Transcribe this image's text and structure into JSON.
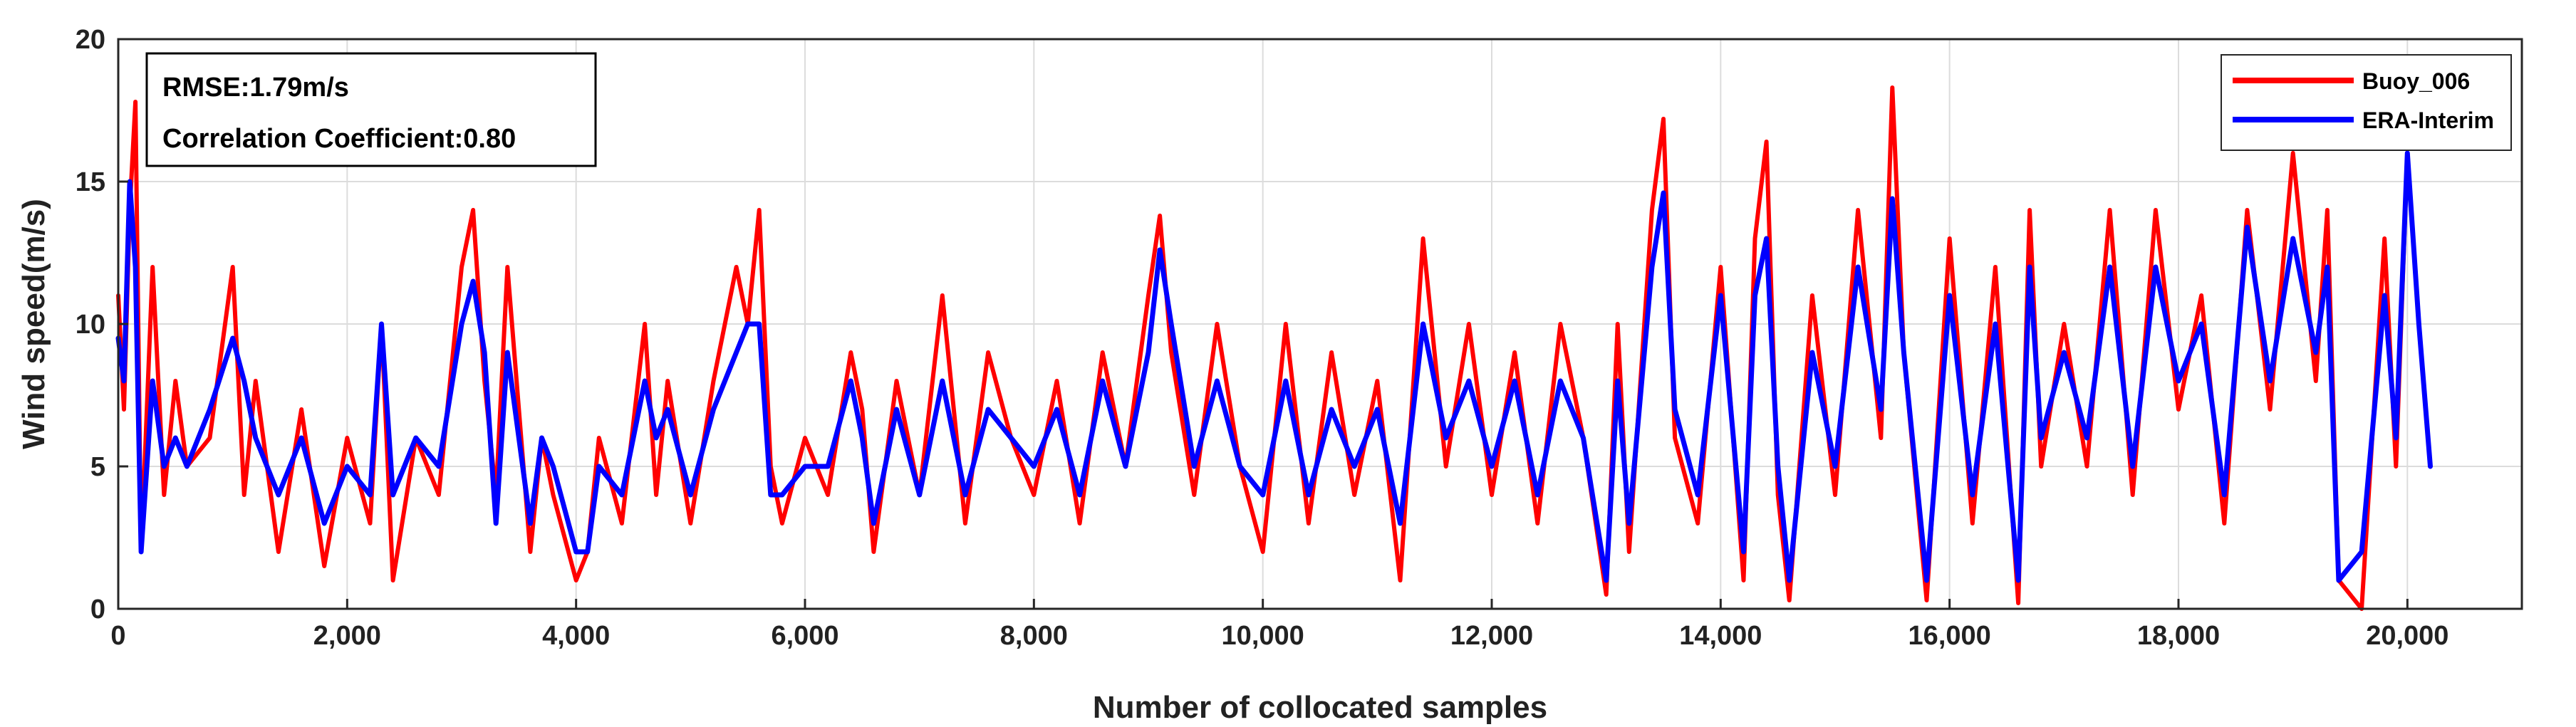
{
  "chart_data": {
    "type": "line",
    "title": "",
    "xlabel": "Number of collocated samples",
    "ylabel": "Wind speed(m/s)",
    "xlim": [
      0,
      21000
    ],
    "ylim": [
      0,
      20
    ],
    "x_ticks": [
      0,
      2000,
      4000,
      6000,
      8000,
      10000,
      12000,
      14000,
      16000,
      18000,
      20000
    ],
    "x_tick_labels": [
      "0",
      "2,000",
      "4,000",
      "6,000",
      "8,000",
      "10,000",
      "12,000",
      "14,000",
      "16,000",
      "18,000",
      "20,000"
    ],
    "y_ticks": [
      0,
      5,
      10,
      15,
      20
    ],
    "y_tick_labels": [
      "0",
      "5",
      "10",
      "15",
      "20"
    ],
    "grid": true,
    "legend_position": "top-right",
    "annotation_lines": [
      "RMSE:1.79m/s",
      "Correlation Coefficient:0.80"
    ],
    "series": [
      {
        "name": "Buoy_006",
        "color": "#ff0000",
        "x": [
          0,
          50,
          100,
          150,
          200,
          300,
          400,
          500,
          600,
          800,
          1000,
          1100,
          1200,
          1400,
          1600,
          1800,
          2000,
          2200,
          2300,
          2400,
          2600,
          2800,
          3000,
          3100,
          3200,
          3300,
          3400,
          3600,
          3700,
          3800,
          4000,
          4100,
          4200,
          4400,
          4600,
          4700,
          4800,
          5000,
          5200,
          5400,
          5500,
          5600,
          5700,
          5800,
          6000,
          6200,
          6400,
          6500,
          6600,
          6800,
          7000,
          7200,
          7400,
          7600,
          7800,
          8000,
          8200,
          8400,
          8600,
          8800,
          9000,
          9100,
          9200,
          9400,
          9600,
          9800,
          10000,
          10200,
          10400,
          10600,
          10800,
          11000,
          11200,
          11400,
          11600,
          11800,
          12000,
          12200,
          12400,
          12600,
          12800,
          13000,
          13100,
          13200,
          13400,
          13500,
          13600,
          13800,
          14000,
          14200,
          14300,
          14400,
          14500,
          14600,
          14800,
          15000,
          15200,
          15400,
          15500,
          15600,
          15800,
          16000,
          16200,
          16400,
          16600,
          16700,
          16800,
          17000,
          17200,
          17400,
          17600,
          17800,
          18000,
          18200,
          18400,
          18600,
          18800,
          19000,
          19200,
          19300,
          19400,
          19600,
          19800,
          19900,
          20000,
          20100,
          20200
        ],
        "values": [
          11,
          7,
          14,
          17.8,
          2,
          12,
          4,
          8,
          5,
          6,
          12,
          4,
          8,
          2,
          7,
          1.5,
          6,
          3,
          10,
          1,
          6,
          4,
          12,
          14,
          8,
          4,
          12,
          2,
          6,
          4,
          1,
          2,
          6,
          3,
          10,
          4,
          8,
          3,
          8,
          12,
          10,
          14,
          5,
          3,
          6,
          4,
          9,
          7,
          2,
          8,
          4,
          11,
          3,
          9,
          6,
          4,
          8,
          3,
          9,
          5,
          11,
          13.8,
          9,
          4,
          10,
          5,
          2,
          10,
          3,
          9,
          4,
          8,
          1,
          13,
          5,
          10,
          4,
          9,
          3,
          10,
          6,
          0.5,
          10,
          2,
          14,
          17.2,
          6,
          3,
          12,
          1,
          13,
          16.4,
          4,
          0.3,
          11,
          4,
          14,
          6,
          18.3,
          9,
          0.3,
          13,
          3,
          12,
          0.2,
          14,
          5,
          10,
          5,
          14,
          4,
          14,
          7,
          11,
          3,
          14,
          7,
          16,
          8,
          14,
          1,
          0,
          13,
          5,
          16,
          10,
          5
        ]
      },
      {
        "name": "ERA-Interim",
        "color": "#0000ff",
        "x": [
          0,
          50,
          100,
          150,
          200,
          300,
          400,
          500,
          600,
          800,
          1000,
          1100,
          1200,
          1400,
          1600,
          1800,
          2000,
          2200,
          2300,
          2400,
          2600,
          2800,
          3000,
          3100,
          3200,
          3300,
          3400,
          3600,
          3700,
          3800,
          4000,
          4100,
          4200,
          4400,
          4600,
          4700,
          4800,
          5000,
          5200,
          5400,
          5500,
          5600,
          5700,
          5800,
          6000,
          6200,
          6400,
          6500,
          6600,
          6800,
          7000,
          7200,
          7400,
          7600,
          7800,
          8000,
          8200,
          8400,
          8600,
          8800,
          9000,
          9100,
          9200,
          9400,
          9600,
          9800,
          10000,
          10200,
          10400,
          10600,
          10800,
          11000,
          11200,
          11400,
          11600,
          11800,
          12000,
          12200,
          12400,
          12600,
          12800,
          13000,
          13100,
          13200,
          13400,
          13500,
          13600,
          13800,
          14000,
          14200,
          14300,
          14400,
          14500,
          14600,
          14800,
          15000,
          15200,
          15400,
          15500,
          15600,
          15800,
          16000,
          16200,
          16400,
          16600,
          16700,
          16800,
          17000,
          17200,
          17400,
          17600,
          17800,
          18000,
          18200,
          18400,
          18600,
          18800,
          19000,
          19200,
          19300,
          19400,
          19600,
          19800,
          19900,
          20000,
          20100,
          20200
        ],
        "values": [
          9.5,
          8,
          15,
          12,
          2,
          8,
          5,
          6,
          5,
          7,
          9.5,
          8,
          6,
          4,
          6,
          3,
          5,
          4,
          10,
          4,
          6,
          5,
          10,
          11.5,
          9,
          3,
          9,
          3,
          6,
          5,
          2,
          2,
          5,
          4,
          8,
          6,
          7,
          4,
          7,
          9,
          10,
          10,
          4,
          4,
          5,
          5,
          8,
          6,
          3,
          7,
          4,
          8,
          4,
          7,
          6,
          5,
          7,
          4,
          8,
          5,
          9,
          12.6,
          10,
          5,
          8,
          5,
          4,
          8,
          4,
          7,
          5,
          7,
          3,
          10,
          6,
          8,
          5,
          8,
          4,
          8,
          6,
          1,
          8,
          3,
          12,
          14.6,
          7,
          4,
          11,
          2,
          11,
          13,
          5,
          1,
          9,
          5,
          12,
          7,
          14.4,
          9,
          1,
          11,
          4,
          10,
          1,
          12,
          6,
          9,
          6,
          12,
          5,
          12,
          8,
          10,
          4,
          13.4,
          8,
          13,
          9,
          12,
          1,
          2,
          11,
          6,
          16,
          10,
          5
        ]
      }
    ]
  }
}
